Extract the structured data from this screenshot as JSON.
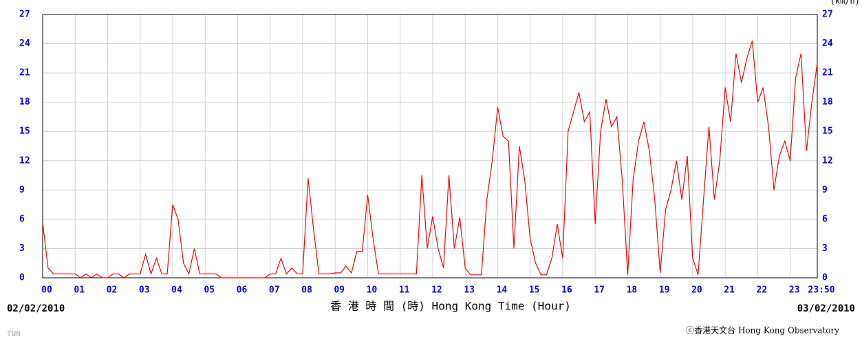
{
  "chart_data": {
    "type": "line",
    "y2_label": "(km/h)",
    "x_label": "香 港 時 間 (時) Hong Kong Time (Hour)",
    "start_date": "02/02/2010",
    "end_date": "03/02/2010",
    "credit": "ⓒ香港天文台 Hong Kong Observatory",
    "station": "TUN",
    "x": [
      0,
      10,
      20,
      30,
      40,
      50,
      60,
      70,
      80,
      90,
      100,
      110,
      120,
      130,
      140,
      150,
      160,
      170,
      180,
      190,
      200,
      210,
      220,
      230,
      240,
      250,
      260,
      270,
      280,
      290,
      300,
      310,
      320,
      330,
      340,
      350,
      360,
      370,
      380,
      390,
      400,
      410,
      420,
      430,
      440,
      450,
      460,
      470,
      480,
      490,
      500,
      510,
      520,
      530,
      540,
      550,
      560,
      570,
      580,
      590,
      600,
      610,
      620,
      630,
      640,
      650,
      660,
      670,
      680,
      690,
      700,
      710,
      720,
      730,
      740,
      750,
      760,
      770,
      780,
      790,
      800,
      810,
      820,
      830,
      840,
      850,
      860,
      870,
      880,
      890,
      900,
      910,
      920,
      930,
      940,
      950,
      960,
      970,
      980,
      990,
      1000,
      1010,
      1020,
      1030,
      1040,
      1050,
      1060,
      1070,
      1080,
      1090,
      1100,
      1110,
      1120,
      1130,
      1140,
      1150,
      1160,
      1170,
      1180,
      1190,
      1200,
      1210,
      1220,
      1230,
      1240,
      1250,
      1260,
      1270,
      1280,
      1290,
      1300,
      1310,
      1320,
      1330,
      1340,
      1350,
      1360,
      1370,
      1380,
      1390,
      1400,
      1410,
      1420,
      1430
    ],
    "series": [
      {
        "color": "#ff0000",
        "values": [
          5.7,
          1,
          0.4,
          0.4,
          0.4,
          0.4,
          0.4,
          0,
          0.4,
          0,
          0.4,
          0,
          0,
          0.4,
          0.4,
          0,
          0.4,
          0.4,
          0.4,
          2.4,
          0.4,
          2,
          0.4,
          0.4,
          7.5,
          6,
          1.5,
          0.4,
          3,
          0.4,
          0.4,
          0.4,
          0.4,
          0,
          0,
          0,
          0,
          0,
          0,
          0,
          0,
          0,
          0.4,
          0.4,
          2,
          0.4,
          1,
          0.4,
          0.4,
          10.2,
          5,
          0.4,
          0.4,
          0.4,
          0.5,
          0.5,
          1.2,
          0.5,
          2.7,
          2.7,
          8.5,
          4,
          0.4,
          0.4,
          0.4,
          0.4,
          0.4,
          0.4,
          0.4,
          0.4,
          10.5,
          3,
          6.3,
          3,
          1,
          10.5,
          3,
          6.2,
          1,
          0.3,
          0.3,
          0.3,
          8,
          12,
          17.5,
          14.5,
          14,
          3,
          13.5,
          10,
          4,
          1.5,
          0.3,
          0.3,
          2,
          5.5,
          2,
          15,
          17,
          19,
          16,
          17,
          5.5,
          15,
          18.3,
          15.5,
          16.5,
          10,
          0.3,
          10,
          14,
          16,
          13,
          8,
          0.5,
          7,
          9,
          12,
          8,
          12.5,
          2,
          0.3,
          8,
          15.5,
          8,
          12,
          19.5,
          16,
          23,
          20,
          22.5,
          24.3,
          18,
          19.5,
          15.5,
          9,
          12.5,
          14,
          12,
          20.5,
          23,
          13,
          18,
          22
        ]
      }
    ],
    "xlim": [
      0,
      1430
    ],
    "xticks": [
      {
        "value": 0,
        "label": "00"
      },
      {
        "value": 60,
        "label": "01"
      },
      {
        "value": 120,
        "label": "02"
      },
      {
        "value": 180,
        "label": "03"
      },
      {
        "value": 240,
        "label": "04"
      },
      {
        "value": 300,
        "label": "05"
      },
      {
        "value": 360,
        "label": "06"
      },
      {
        "value": 420,
        "label": "07"
      },
      {
        "value": 480,
        "label": "08"
      },
      {
        "value": 540,
        "label": "09"
      },
      {
        "value": 600,
        "label": "10"
      },
      {
        "value": 660,
        "label": "11"
      },
      {
        "value": 720,
        "label": "12"
      },
      {
        "value": 780,
        "label": "13"
      },
      {
        "value": 840,
        "label": "14"
      },
      {
        "value": 900,
        "label": "15"
      },
      {
        "value": 960,
        "label": "16"
      },
      {
        "value": 1020,
        "label": "17"
      },
      {
        "value": 1080,
        "label": "18"
      },
      {
        "value": 1140,
        "label": "19"
      },
      {
        "value": 1200,
        "label": "20"
      },
      {
        "value": 1260,
        "label": "21"
      },
      {
        "value": 1320,
        "label": "22"
      },
      {
        "value": 1380,
        "label": "23"
      },
      {
        "value": 1430,
        "label": "23:50"
      }
    ],
    "ylim": [
      0,
      27
    ],
    "yticks": [
      0,
      3,
      6,
      9,
      12,
      15,
      18,
      21,
      24,
      27
    ],
    "y2lim": [
      0,
      27
    ],
    "y2ticks": [
      0,
      3,
      6,
      9,
      12,
      15,
      18,
      21,
      24,
      27
    ],
    "grid": true
  }
}
